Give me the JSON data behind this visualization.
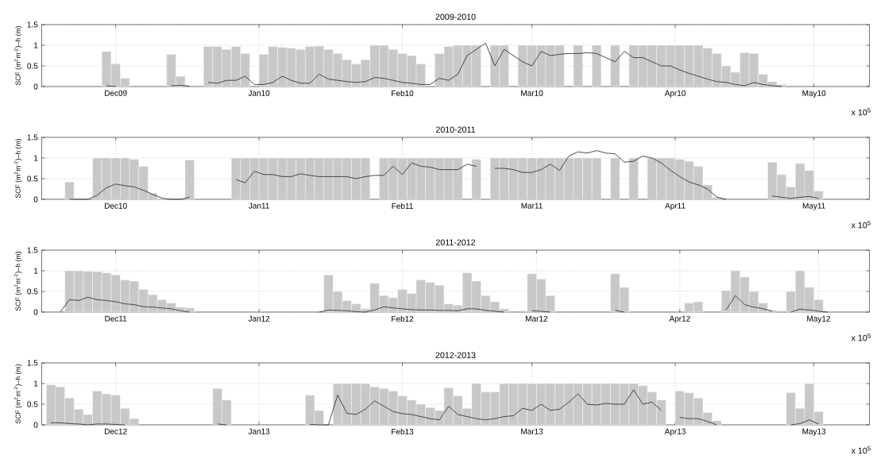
{
  "chart_data": [
    {
      "type": "bar",
      "title": "2009-2010",
      "ylabel": "SCF (m$^{2}$m$^{-2}$)–h (m)",
      "grid": true,
      "xlim": [
        "2009-11-15",
        "2010-05-13"
      ],
      "ylim": [
        0,
        1.5
      ],
      "yticks": [
        0,
        0.5,
        1,
        1.5
      ],
      "xticks": [
        {
          "value": "2009-12-01",
          "label": "Dec09"
        },
        {
          "value": "2010-01-01",
          "label": "Jan10"
        },
        {
          "value": "2010-02-01",
          "label": "Feb10"
        },
        {
          "value": "2010-03-01",
          "label": "Mar10"
        },
        {
          "value": "2010-04-01",
          "label": "Apr10"
        },
        {
          "value": "2010-05-01",
          "label": "May10"
        }
      ],
      "annotations": [
        "x 10$^{5}$"
      ],
      "x": [
        "2009-11-29",
        "2009-12-01",
        "2009-12-03",
        "2009-12-05",
        "2009-12-07",
        "2009-12-09",
        "2009-12-11",
        "2009-12-13",
        "2009-12-15",
        "2009-12-17",
        "2009-12-19",
        "2009-12-21",
        "2009-12-23",
        "2009-12-25",
        "2009-12-27",
        "2009-12-29",
        "2009-12-31",
        "2010-01-02",
        "2010-01-04",
        "2010-01-06",
        "2010-01-08",
        "2010-01-10",
        "2010-01-12",
        "2010-01-14",
        "2010-01-16",
        "2010-01-18",
        "2010-01-20",
        "2010-01-22",
        "2010-01-24",
        "2010-01-26",
        "2010-01-28",
        "2010-01-30",
        "2010-02-01",
        "2010-02-03",
        "2010-02-05",
        "2010-02-07",
        "2010-02-09",
        "2010-02-11",
        "2010-02-13",
        "2010-02-15",
        "2010-02-17",
        "2010-02-19",
        "2010-02-21",
        "2010-02-23",
        "2010-02-25",
        "2010-02-27",
        "2010-03-01",
        "2010-03-03",
        "2010-03-05",
        "2010-03-07",
        "2010-03-09",
        "2010-03-11",
        "2010-03-13",
        "2010-03-15",
        "2010-03-17",
        "2010-03-19",
        "2010-03-21",
        "2010-03-23",
        "2010-03-25",
        "2010-03-27",
        "2010-03-29",
        "2010-03-31",
        "2010-04-02",
        "2010-04-04",
        "2010-04-06",
        "2010-04-08",
        "2010-04-10",
        "2010-04-12",
        "2010-04-14",
        "2010-04-16",
        "2010-04-18",
        "2010-04-20",
        "2010-04-22",
        "2010-04-24"
      ],
      "series": [
        {
          "color": "#c8c8c8",
          "values": [
            0.85,
            0.55,
            0.2,
            null,
            null,
            null,
            null,
            0.78,
            0.25,
            null,
            null,
            0.97,
            0.97,
            0.9,
            0.97,
            0.8,
            null,
            0.78,
            0.97,
            0.95,
            0.93,
            0.9,
            0.97,
            0.98,
            0.9,
            0.8,
            0.65,
            0.55,
            0.65,
            1,
            1,
            0.9,
            0.8,
            0.75,
            0.55,
            null,
            0.8,
            0.97,
            1,
            1,
            1,
            null,
            1,
            1,
            null,
            1,
            1,
            1,
            1,
            1,
            null,
            1,
            null,
            1,
            null,
            1,
            null,
            1,
            1,
            1,
            1,
            1,
            1,
            1,
            1,
            0.93,
            0.8,
            0.5,
            0.35,
            0.82,
            0.8,
            0.3,
            0.12,
            0.05
          ]
        },
        {
          "type": "line",
          "color": "#3c3c3c",
          "values": [
            0.02,
            0,
            null,
            null,
            null,
            null,
            null,
            0.02,
            0.03,
            0.01,
            null,
            0.1,
            0.08,
            0.15,
            0.15,
            0.25,
            0.05,
            0.05,
            0.1,
            0.25,
            0.15,
            0.08,
            0.08,
            0.3,
            0.18,
            0.15,
            0.12,
            0.1,
            0.12,
            0.22,
            0.2,
            0.15,
            0.1,
            0.08,
            0.05,
            0.05,
            0.2,
            0.15,
            0.3,
            0.75,
            0.9,
            1.05,
            0.5,
            0.9,
            0.75,
            0.6,
            0.5,
            0.85,
            0.75,
            0.78,
            0.8,
            0.8,
            0.82,
            0.8,
            0.7,
            0.6,
            0.85,
            0.7,
            0.7,
            0.6,
            0.5,
            0.5,
            0.4,
            0.32,
            0.25,
            0.18,
            0.12,
            0.1,
            0.05,
            0.02,
            0.1,
            0.05,
            0.02,
            0
          ]
        }
      ]
    },
    {
      "type": "bar",
      "title": "2010-2011",
      "ylabel": "SCF (m$^{2}$m$^{-2}$)–h (m)",
      "grid": true,
      "xlim": [
        "2010-11-15",
        "2011-05-13"
      ],
      "ylim": [
        0,
        1.5
      ],
      "yticks": [
        0,
        0.5,
        1,
        1.5
      ],
      "xticks": [
        {
          "value": "2010-12-01",
          "label": "Dec10"
        },
        {
          "value": "2011-01-01",
          "label": "Jan11"
        },
        {
          "value": "2011-02-01",
          "label": "Feb11"
        },
        {
          "value": "2011-03-01",
          "label": "Mar11"
        },
        {
          "value": "2011-04-01",
          "label": "Apr11"
        },
        {
          "value": "2011-05-01",
          "label": "May11"
        }
      ],
      "annotations": [
        "x 10$^{5}$"
      ],
      "x": [
        "2010-11-21",
        "2010-11-23",
        "2010-11-25",
        "2010-11-27",
        "2010-11-29",
        "2010-12-01",
        "2010-12-03",
        "2010-12-05",
        "2010-12-07",
        "2010-12-09",
        "2010-12-11",
        "2010-12-13",
        "2010-12-15",
        "2010-12-17",
        "2010-12-19",
        "2010-12-21",
        "2010-12-23",
        "2010-12-25",
        "2010-12-27",
        "2010-12-29",
        "2010-12-31",
        "2011-01-02",
        "2011-01-04",
        "2011-01-06",
        "2011-01-08",
        "2011-01-10",
        "2011-01-12",
        "2011-01-14",
        "2011-01-16",
        "2011-01-18",
        "2011-01-20",
        "2011-01-22",
        "2011-01-24",
        "2011-01-26",
        "2011-01-28",
        "2011-01-30",
        "2011-02-01",
        "2011-02-03",
        "2011-02-05",
        "2011-02-07",
        "2011-02-09",
        "2011-02-11",
        "2011-02-13",
        "2011-02-15",
        "2011-02-17",
        "2011-02-19",
        "2011-02-21",
        "2011-02-23",
        "2011-02-25",
        "2011-02-27",
        "2011-03-01",
        "2011-03-03",
        "2011-03-05",
        "2011-03-07",
        "2011-03-09",
        "2011-03-11",
        "2011-03-13",
        "2011-03-15",
        "2011-03-17",
        "2011-03-19",
        "2011-03-21",
        "2011-03-23",
        "2011-03-25",
        "2011-03-27",
        "2011-03-29",
        "2011-03-31",
        "2011-04-02",
        "2011-04-04",
        "2011-04-06",
        "2011-04-08",
        "2011-04-10",
        "2011-04-12",
        "2011-04-14",
        "2011-04-16",
        "2011-04-18",
        "2011-04-20",
        "2011-04-22",
        "2011-04-24",
        "2011-04-26",
        "2011-04-28",
        "2011-04-30",
        "2011-05-02"
      ],
      "series": [
        {
          "color": "#c8c8c8",
          "values": [
            0.42,
            null,
            null,
            1,
            1,
            1,
            1,
            0.97,
            0.8,
            0.15,
            0.02,
            null,
            null,
            0.95,
            null,
            null,
            null,
            null,
            1,
            1,
            1,
            1,
            1,
            1,
            1,
            1,
            1,
            1,
            1,
            1,
            1,
            1,
            1,
            null,
            1,
            1,
            1,
            1,
            1,
            1,
            1,
            1,
            1,
            null,
            0.97,
            null,
            1,
            1,
            1,
            1,
            1,
            1,
            1,
            1,
            1,
            1,
            1,
            1,
            null,
            1,
            null,
            1,
            null,
            1,
            1,
            1,
            0.97,
            0.92,
            0.8,
            0.35,
            0.05,
            null,
            null,
            null,
            null,
            null,
            0.9,
            0.6,
            0.3,
            0.87,
            0.7,
            0.2
          ]
        },
        {
          "type": "line",
          "color": "#3c3c3c",
          "values": [
            0,
            0,
            0,
            0.1,
            0.28,
            0.37,
            0.33,
            0.3,
            0.22,
            0.12,
            0.03,
            0,
            0,
            0.05,
            null,
            null,
            null,
            null,
            0.48,
            0.4,
            0.68,
            0.6,
            0.6,
            0.55,
            0.55,
            0.62,
            0.58,
            0.55,
            0.55,
            0.55,
            0.55,
            0.5,
            0.55,
            0.58,
            0.58,
            0.8,
            0.6,
            0.88,
            0.8,
            0.78,
            0.72,
            0.72,
            0.72,
            0.85,
            0.8,
            null,
            0.75,
            0.75,
            0.72,
            0.65,
            0.65,
            0.72,
            0.85,
            0.7,
            1.05,
            1.15,
            1.12,
            1.18,
            1.12,
            1.1,
            0.9,
            0.92,
            1.05,
            1,
            0.88,
            0.7,
            0.55,
            0.42,
            0.35,
            0.25,
            0.05,
            0,
            null,
            null,
            null,
            null,
            0.08,
            0.05,
            0.02,
            0.05,
            0.07,
            0.02
          ]
        }
      ]
    },
    {
      "type": "bar",
      "title": "2011-2012",
      "ylabel": "SCF (m$^{2}$m$^{-2}$)–h (m)",
      "grid": true,
      "xlim": [
        "2011-11-15",
        "2012-05-12"
      ],
      "ylim": [
        0,
        1.5
      ],
      "yticks": [
        0,
        0.5,
        1,
        1.5
      ],
      "xticks": [
        {
          "value": "2011-12-01",
          "label": "Dec11"
        },
        {
          "value": "2012-01-01",
          "label": "Jan12"
        },
        {
          "value": "2012-02-01",
          "label": "Feb12"
        },
        {
          "value": "2012-03-01",
          "label": "Mar12"
        },
        {
          "value": "2012-04-01",
          "label": "Apr12"
        },
        {
          "value": "2012-05-01",
          "label": "May12"
        }
      ],
      "annotations": [
        "x 10$^{5}$"
      ],
      "x": [
        "2011-11-19",
        "2011-11-21",
        "2011-11-23",
        "2011-11-25",
        "2011-11-27",
        "2011-11-29",
        "2011-12-01",
        "2011-12-03",
        "2011-12-05",
        "2011-12-07",
        "2011-12-09",
        "2011-12-11",
        "2011-12-13",
        "2011-12-15",
        "2011-12-17",
        "2011-12-19",
        "2011-12-21",
        "2011-12-23",
        "2011-12-25",
        "2011-12-27",
        "2011-12-29",
        "2011-12-31",
        "2012-01-02",
        "2012-01-04",
        "2012-01-06",
        "2012-01-08",
        "2012-01-10",
        "2012-01-12",
        "2012-01-14",
        "2012-01-16",
        "2012-01-18",
        "2012-01-20",
        "2012-01-22",
        "2012-01-24",
        "2012-01-26",
        "2012-01-28",
        "2012-01-30",
        "2012-02-01",
        "2012-02-03",
        "2012-02-05",
        "2012-02-07",
        "2012-02-09",
        "2012-02-11",
        "2012-02-13",
        "2012-02-15",
        "2012-02-17",
        "2012-02-19",
        "2012-02-21",
        "2012-02-23",
        "2012-02-25",
        "2012-02-27",
        "2012-02-29",
        "2012-03-02",
        "2012-03-04",
        "2012-03-06",
        "2012-03-08",
        "2012-03-10",
        "2012-03-12",
        "2012-03-14",
        "2012-03-16",
        "2012-03-18",
        "2012-03-20",
        "2012-03-22",
        "2012-03-24",
        "2012-03-26",
        "2012-03-28",
        "2012-03-30",
        "2012-04-01",
        "2012-04-03",
        "2012-04-05",
        "2012-04-07",
        "2012-04-09",
        "2012-04-11",
        "2012-04-13",
        "2012-04-15",
        "2012-04-17",
        "2012-04-19",
        "2012-04-21",
        "2012-04-23",
        "2012-04-25",
        "2012-04-27",
        "2012-04-29",
        "2012-05-01",
        "2012-05-03"
      ],
      "series": [
        {
          "color": "#c8c8c8",
          "values": [
            null,
            1,
            1,
            0.99,
            0.98,
            0.95,
            0.9,
            0.78,
            0.75,
            0.55,
            0.42,
            0.3,
            0.22,
            0.12,
            0.1,
            null,
            null,
            null,
            null,
            null,
            null,
            null,
            null,
            null,
            null,
            null,
            null,
            null,
            null,
            0.9,
            0.5,
            0.28,
            0.2,
            0.08,
            0.7,
            0.4,
            0.35,
            0.55,
            0.45,
            0.78,
            0.72,
            0.65,
            0.2,
            0.17,
            0.95,
            0.75,
            0.4,
            0.25,
            0.08,
            null,
            null,
            0.93,
            0.8,
            0.4,
            null,
            null,
            null,
            null,
            null,
            null,
            0.93,
            0.6,
            null,
            null,
            null,
            null,
            null,
            null,
            0.22,
            0.25,
            null,
            null,
            0.52,
            1,
            0.85,
            0.5,
            0.22,
            0.05,
            null,
            0.5,
            1,
            0.6,
            0.3,
            null
          ]
        },
        {
          "type": "line",
          "color": "#3c3c3c",
          "values": [
            0,
            0.3,
            0.28,
            0.36,
            0.3,
            0.28,
            0.25,
            0.2,
            0.18,
            0.13,
            0.12,
            0.1,
            0.08,
            0.03,
            0,
            null,
            null,
            null,
            null,
            null,
            null,
            null,
            null,
            null,
            null,
            null,
            null,
            null,
            0,
            0.05,
            0.04,
            0.03,
            0.01,
            0,
            0.05,
            0.13,
            0.1,
            0.08,
            0.06,
            0.05,
            0.05,
            0.04,
            0.04,
            0.03,
            0.08,
            0.08,
            0.04,
            0.02,
            0,
            null,
            null,
            0.03,
            0.02,
            0,
            null,
            null,
            null,
            null,
            null,
            null,
            0.04,
            0,
            null,
            null,
            null,
            null,
            null,
            null,
            null,
            null,
            null,
            null,
            0.05,
            0.4,
            0.18,
            0.12,
            0.08,
            0.02,
            null,
            0,
            0.07,
            0.05,
            0.02,
            0
          ]
        }
      ]
    },
    {
      "type": "bar",
      "title": "2012-2013",
      "ylabel": "SCF (m$^{2}$m$^{-2}$)–h (m)",
      "grid": true,
      "xlim": [
        "2012-11-15",
        "2013-05-13"
      ],
      "ylim": [
        0,
        1.5
      ],
      "yticks": [
        0,
        0.5,
        1,
        1.5
      ],
      "xticks": [
        {
          "value": "2012-12-01",
          "label": "Dec12"
        },
        {
          "value": "2013-01-01",
          "label": "Jan13"
        },
        {
          "value": "2013-02-01",
          "label": "Feb13"
        },
        {
          "value": "2013-03-01",
          "label": "Mar13"
        },
        {
          "value": "2013-04-01",
          "label": "Apr13"
        },
        {
          "value": "2013-05-01",
          "label": "May13"
        }
      ],
      "annotations": [
        "x 10$^{5}$"
      ],
      "x": [
        "2012-11-17",
        "2012-11-19",
        "2012-11-21",
        "2012-11-23",
        "2012-11-25",
        "2012-11-27",
        "2012-11-29",
        "2012-12-01",
        "2012-12-03",
        "2012-12-05",
        "2012-12-07",
        "2012-12-09",
        "2012-12-11",
        "2012-12-13",
        "2012-12-15",
        "2012-12-17",
        "2012-12-19",
        "2012-12-21",
        "2012-12-23",
        "2012-12-25",
        "2012-12-27",
        "2012-12-29",
        "2012-12-31",
        "2013-01-02",
        "2013-01-04",
        "2013-01-06",
        "2013-01-08",
        "2013-01-10",
        "2013-01-12",
        "2013-01-14",
        "2013-01-16",
        "2013-01-18",
        "2013-01-20",
        "2013-01-22",
        "2013-01-24",
        "2013-01-26",
        "2013-01-28",
        "2013-01-30",
        "2013-02-01",
        "2013-02-03",
        "2013-02-05",
        "2013-02-07",
        "2013-02-09",
        "2013-02-11",
        "2013-02-13",
        "2013-02-15",
        "2013-02-17",
        "2013-02-19",
        "2013-02-21",
        "2013-02-23",
        "2013-02-25",
        "2013-02-27",
        "2013-03-01",
        "2013-03-03",
        "2013-03-05",
        "2013-03-07",
        "2013-03-09",
        "2013-03-11",
        "2013-03-13",
        "2013-03-15",
        "2013-03-17",
        "2013-03-19",
        "2013-03-21",
        "2013-03-23",
        "2013-03-25",
        "2013-03-27",
        "2013-03-29",
        "2013-03-31",
        "2013-04-02",
        "2013-04-04",
        "2013-04-06",
        "2013-04-08",
        "2013-04-10",
        "2013-04-12",
        "2013-04-14",
        "2013-04-16",
        "2013-04-18",
        "2013-04-20",
        "2013-04-22",
        "2013-04-24",
        "2013-04-26",
        "2013-04-28",
        "2013-04-30",
        "2013-05-02"
      ],
      "series": [
        {
          "color": "#c8c8c8",
          "values": [
            0.97,
            0.92,
            0.65,
            0.38,
            0.25,
            0.82,
            0.75,
            0.72,
            0.4,
            0.15,
            null,
            null,
            null,
            null,
            null,
            null,
            null,
            null,
            0.88,
            0.6,
            null,
            null,
            null,
            null,
            null,
            null,
            null,
            null,
            0.72,
            0.35,
            null,
            1,
            1,
            1,
            1,
            0.92,
            0.88,
            0.82,
            0.7,
            0.6,
            0.5,
            0.42,
            0.35,
            0.9,
            0.7,
            0.4,
            1,
            0.8,
            0.8,
            1,
            1,
            1,
            1,
            1,
            1,
            1,
            1,
            1,
            1,
            1,
            1,
            1,
            1,
            1,
            0.95,
            0.8,
            0.6,
            null,
            0.82,
            0.78,
            0.65,
            0.3,
            0.1,
            null,
            null,
            null,
            null,
            null,
            null,
            null,
            0.78,
            0.4,
            1,
            0.32
          ]
        },
        {
          "type": "line",
          "color": "#3c3c3c",
          "values": [
            0.05,
            0.05,
            0.03,
            0.02,
            0,
            0.02,
            0.02,
            0.01,
            0,
            null,
            null,
            null,
            null,
            null,
            null,
            null,
            null,
            null,
            0.02,
            0,
            null,
            null,
            null,
            null,
            null,
            null,
            null,
            null,
            0.01,
            0,
            0,
            0.72,
            0.28,
            0.25,
            0.38,
            0.58,
            0.45,
            0.32,
            0.27,
            0.25,
            0.2,
            0.15,
            0.12,
            0.45,
            0.25,
            0.2,
            0.15,
            0.12,
            0.15,
            0.2,
            0.22,
            0.4,
            0.35,
            0.5,
            0.35,
            0.38,
            0.55,
            0.75,
            0.5,
            0.48,
            0.52,
            0.5,
            0.5,
            0.85,
            0.5,
            0.55,
            0.35,
            null,
            0.18,
            0.15,
            0.15,
            0.08,
            0,
            null,
            null,
            null,
            null,
            null,
            null,
            null,
            0,
            0.03,
            0.12,
            0.02
          ]
        }
      ]
    }
  ]
}
